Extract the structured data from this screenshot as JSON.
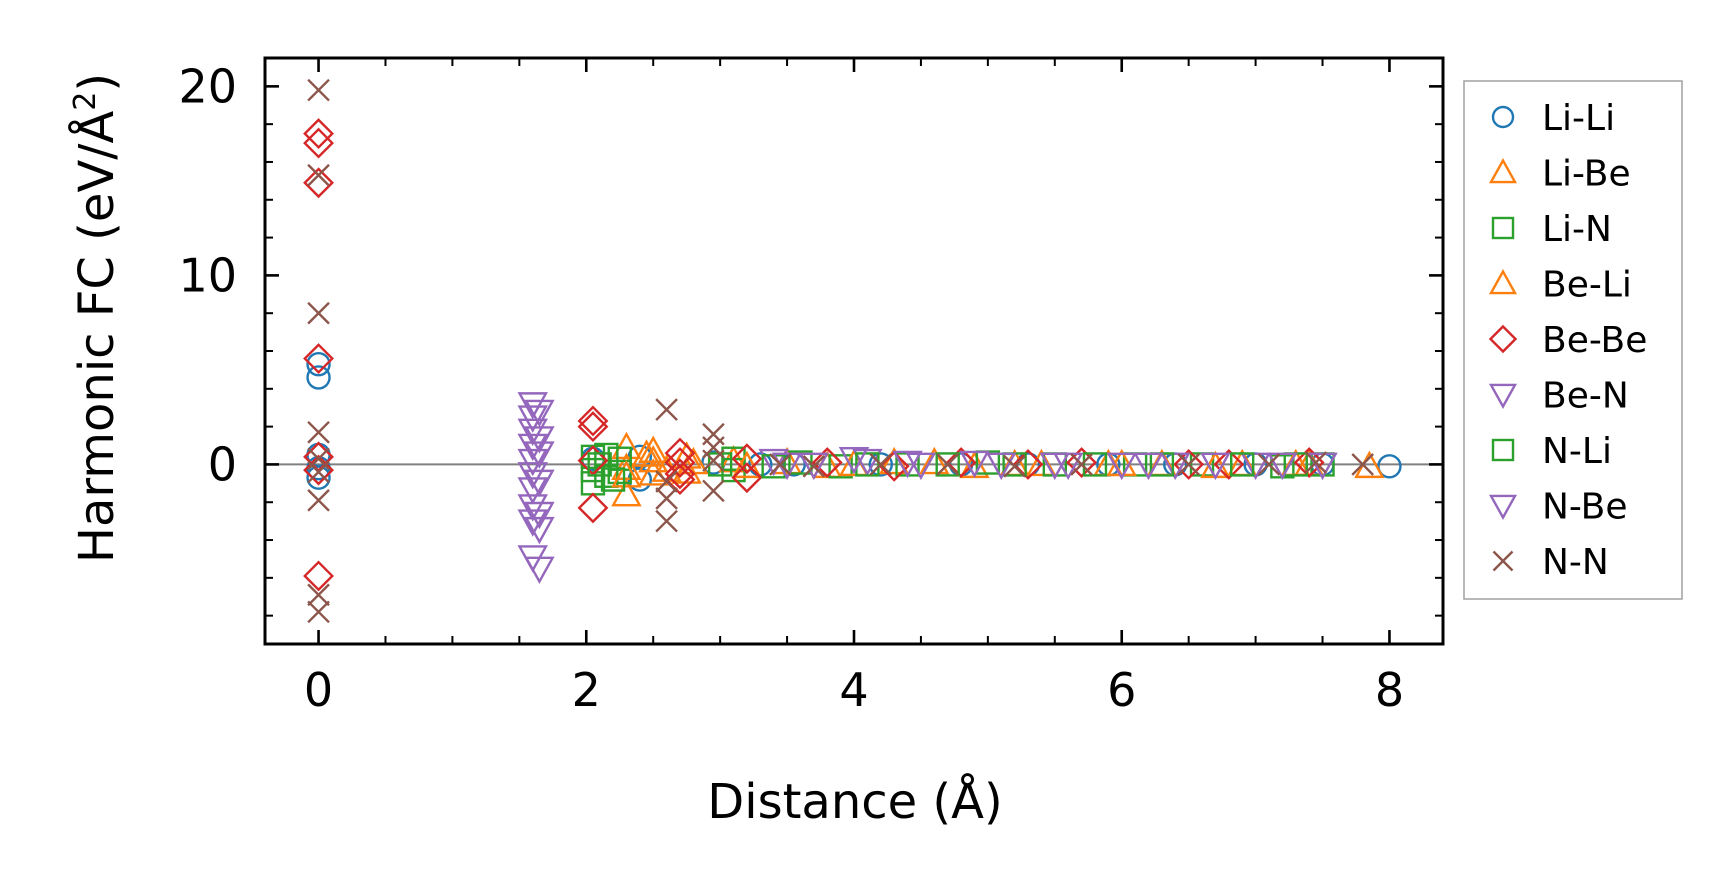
{
  "chart_data": {
    "type": "scatter",
    "xlabel": "Distance (Å)",
    "ylabel_main": "Harmonic FC (eV/Å",
    "ylabel_sup": "2",
    "ylabel_close": ")",
    "xlim": [
      -0.4,
      8.4
    ],
    "ylim": [
      -9.5,
      21.5
    ],
    "xticks": [
      0,
      2,
      4,
      6,
      8
    ],
    "xtick_labels": [
      "0",
      "2",
      "4",
      "6",
      "8"
    ],
    "yticks": [
      0,
      10,
      20
    ],
    "ytick_labels": [
      "0",
      "10",
      "20"
    ],
    "x_minor_step": 0.5,
    "y_minor_step": 2,
    "zero_line": true,
    "grid": false,
    "legend_position": "outside right",
    "series": [
      {
        "name": "Li-Li",
        "marker": "circle",
        "color": "#1f77b4",
        "points": [
          [
            0,
            5.3
          ],
          [
            0,
            4.6
          ],
          [
            0,
            0.5
          ],
          [
            0,
            -0.2
          ],
          [
            0,
            -0.7
          ],
          [
            2.05,
            0.3
          ],
          [
            2.4,
            0.4
          ],
          [
            2.4,
            -0.8
          ],
          [
            2.95,
            0.1
          ],
          [
            3.3,
            0.0
          ],
          [
            3.55,
            0.0
          ],
          [
            4.2,
            0.0
          ],
          [
            4.8,
            0.0
          ],
          [
            5.3,
            0.0
          ],
          [
            5.9,
            0.0
          ],
          [
            6.4,
            0.0
          ],
          [
            7.0,
            0.0
          ],
          [
            7.5,
            0.0
          ],
          [
            8.0,
            -0.1
          ]
        ]
      },
      {
        "name": "Li-Be",
        "marker": "triangle-up",
        "color": "#ff7f0e",
        "points": [
          [
            2.3,
            0.9
          ],
          [
            2.3,
            -1.6
          ],
          [
            2.3,
            -0.2
          ],
          [
            2.5,
            0.7
          ],
          [
            2.5,
            -0.5
          ],
          [
            2.5,
            0.2
          ],
          [
            2.75,
            0.4
          ],
          [
            2.75,
            -0.4
          ],
          [
            3.1,
            0.2
          ],
          [
            3.5,
            0.1
          ],
          [
            3.8,
            -0.1
          ],
          [
            4.3,
            0.1
          ],
          [
            4.9,
            -0.1
          ],
          [
            5.4,
            0.0
          ],
          [
            5.9,
            0.0
          ],
          [
            6.3,
            0.0
          ],
          [
            6.9,
            0.0
          ],
          [
            7.4,
            0.0
          ],
          [
            7.85,
            -0.1
          ]
        ]
      },
      {
        "name": "Li-N",
        "marker": "square",
        "color": "#2ca02c",
        "points": [
          [
            2.05,
            0.4
          ],
          [
            2.05,
            -0.3
          ],
          [
            2.05,
            -1.0
          ],
          [
            2.15,
            0.5
          ],
          [
            2.15,
            -0.6
          ],
          [
            2.25,
            0.3
          ],
          [
            2.25,
            -0.4
          ],
          [
            3.1,
            0.3
          ],
          [
            3.1,
            -0.3
          ],
          [
            3.6,
            0.1
          ],
          [
            3.9,
            -0.1
          ],
          [
            4.4,
            0.0
          ],
          [
            5.0,
            0.1
          ],
          [
            5.5,
            0.0
          ],
          [
            6.1,
            0.0
          ],
          [
            6.6,
            0.0
          ],
          [
            7.2,
            -0.1
          ],
          [
            7.5,
            0.0
          ]
        ]
      },
      {
        "name": "Be-Li",
        "marker": "triangle-up",
        "color": "#ff7f0e",
        "points": [
          [
            2.3,
            -0.6
          ],
          [
            2.45,
            0.5
          ],
          [
            2.6,
            -0.3
          ],
          [
            2.8,
            0.1
          ],
          [
            3.2,
            -0.1
          ],
          [
            4.0,
            0.0
          ],
          [
            4.6,
            0.1
          ],
          [
            5.2,
            0.0
          ],
          [
            6.0,
            0.0
          ],
          [
            6.7,
            -0.1
          ],
          [
            7.3,
            0.0
          ]
        ]
      },
      {
        "name": "Be-Be",
        "marker": "diamond",
        "color": "#d62728",
        "points": [
          [
            0,
            17.5
          ],
          [
            0,
            17.0
          ],
          [
            0,
            14.9
          ],
          [
            0,
            5.6
          ],
          [
            0,
            0.4
          ],
          [
            0,
            -0.3
          ],
          [
            0,
            -5.9
          ],
          [
            2.05,
            2.3
          ],
          [
            2.05,
            2.0
          ],
          [
            2.05,
            0.2
          ],
          [
            2.05,
            -2.3
          ],
          [
            2.7,
            0.6
          ],
          [
            2.7,
            0.1
          ],
          [
            2.7,
            -0.5
          ],
          [
            2.7,
            -0.8
          ],
          [
            3.2,
            -0.7
          ],
          [
            3.2,
            0.3
          ],
          [
            3.8,
            0.1
          ],
          [
            4.3,
            -0.1
          ],
          [
            4.8,
            0.1
          ],
          [
            5.3,
            0.0
          ],
          [
            5.7,
            0.1
          ],
          [
            6.5,
            0.0
          ],
          [
            6.8,
            0.0
          ],
          [
            7.4,
            0.1
          ]
        ]
      },
      {
        "name": "Be-N",
        "marker": "triangle-down",
        "color": "#9467bd",
        "points": [
          [
            1.6,
            3.2
          ],
          [
            1.6,
            2.5
          ],
          [
            1.6,
            1.8
          ],
          [
            1.6,
            1.0
          ],
          [
            1.6,
            0.2
          ],
          [
            1.6,
            -0.5
          ],
          [
            1.6,
            -1.3
          ],
          [
            1.6,
            -2.2
          ],
          [
            1.6,
            -3.0
          ],
          [
            1.6,
            -4.9
          ],
          [
            1.65,
            -5.5
          ],
          [
            1.65,
            -3.4
          ],
          [
            1.65,
            2.8
          ],
          [
            3.4,
            0.2
          ],
          [
            3.7,
            0.0
          ],
          [
            4.1,
            0.2
          ],
          [
            4.5,
            0.0
          ],
          [
            4.9,
            0.1
          ],
          [
            5.5,
            0.0
          ],
          [
            6.0,
            0.0
          ],
          [
            6.4,
            0.0
          ],
          [
            7.0,
            0.0
          ],
          [
            7.5,
            0.0
          ]
        ]
      },
      {
        "name": "N-Li",
        "marker": "square",
        "color": "#2ca02c",
        "points": [
          [
            2.1,
            0.0
          ],
          [
            2.2,
            -0.8
          ],
          [
            3.0,
            0.0
          ],
          [
            3.4,
            -0.1
          ],
          [
            4.1,
            0.0
          ],
          [
            4.7,
            0.0
          ],
          [
            5.2,
            0.0
          ],
          [
            5.8,
            0.0
          ],
          [
            6.3,
            0.0
          ],
          [
            6.9,
            0.0
          ],
          [
            7.3,
            0.0
          ]
        ]
      },
      {
        "name": "N-Be",
        "marker": "triangle-down",
        "color": "#9467bd",
        "points": [
          [
            1.65,
            1.4
          ],
          [
            1.65,
            0.6
          ],
          [
            1.65,
            -0.9
          ],
          [
            1.65,
            -2.6
          ],
          [
            3.5,
            0.0
          ],
          [
            4.0,
            0.3
          ],
          [
            4.4,
            0.1
          ],
          [
            5.1,
            0.0
          ],
          [
            5.6,
            0.0
          ],
          [
            6.2,
            0.0
          ],
          [
            6.7,
            0.0
          ],
          [
            7.2,
            0.0
          ]
        ]
      },
      {
        "name": "N-N",
        "marker": "x",
        "color": "#8c564b",
        "points": [
          [
            0,
            19.8
          ],
          [
            0,
            15.3
          ],
          [
            0,
            8.0
          ],
          [
            0,
            1.7
          ],
          [
            0,
            0.3
          ],
          [
            0,
            -0.4
          ],
          [
            0,
            -1.9
          ],
          [
            0,
            -6.9
          ],
          [
            0,
            -7.8
          ],
          [
            2.6,
            2.9
          ],
          [
            2.6,
            -0.9
          ],
          [
            2.6,
            -1.8
          ],
          [
            2.6,
            -3.0
          ],
          [
            2.95,
            1.6
          ],
          [
            2.95,
            0.9
          ],
          [
            2.95,
            0.2
          ],
          [
            2.95,
            -1.4
          ],
          [
            3.45,
            0.0
          ],
          [
            3.7,
            -0.1
          ],
          [
            4.2,
            0.0
          ],
          [
            4.7,
            0.0
          ],
          [
            5.2,
            -0.1
          ],
          [
            5.7,
            0.0
          ],
          [
            6.5,
            0.0
          ],
          [
            7.1,
            0.0
          ],
          [
            7.45,
            0.1
          ],
          [
            7.8,
            0.0
          ]
        ]
      }
    ]
  }
}
